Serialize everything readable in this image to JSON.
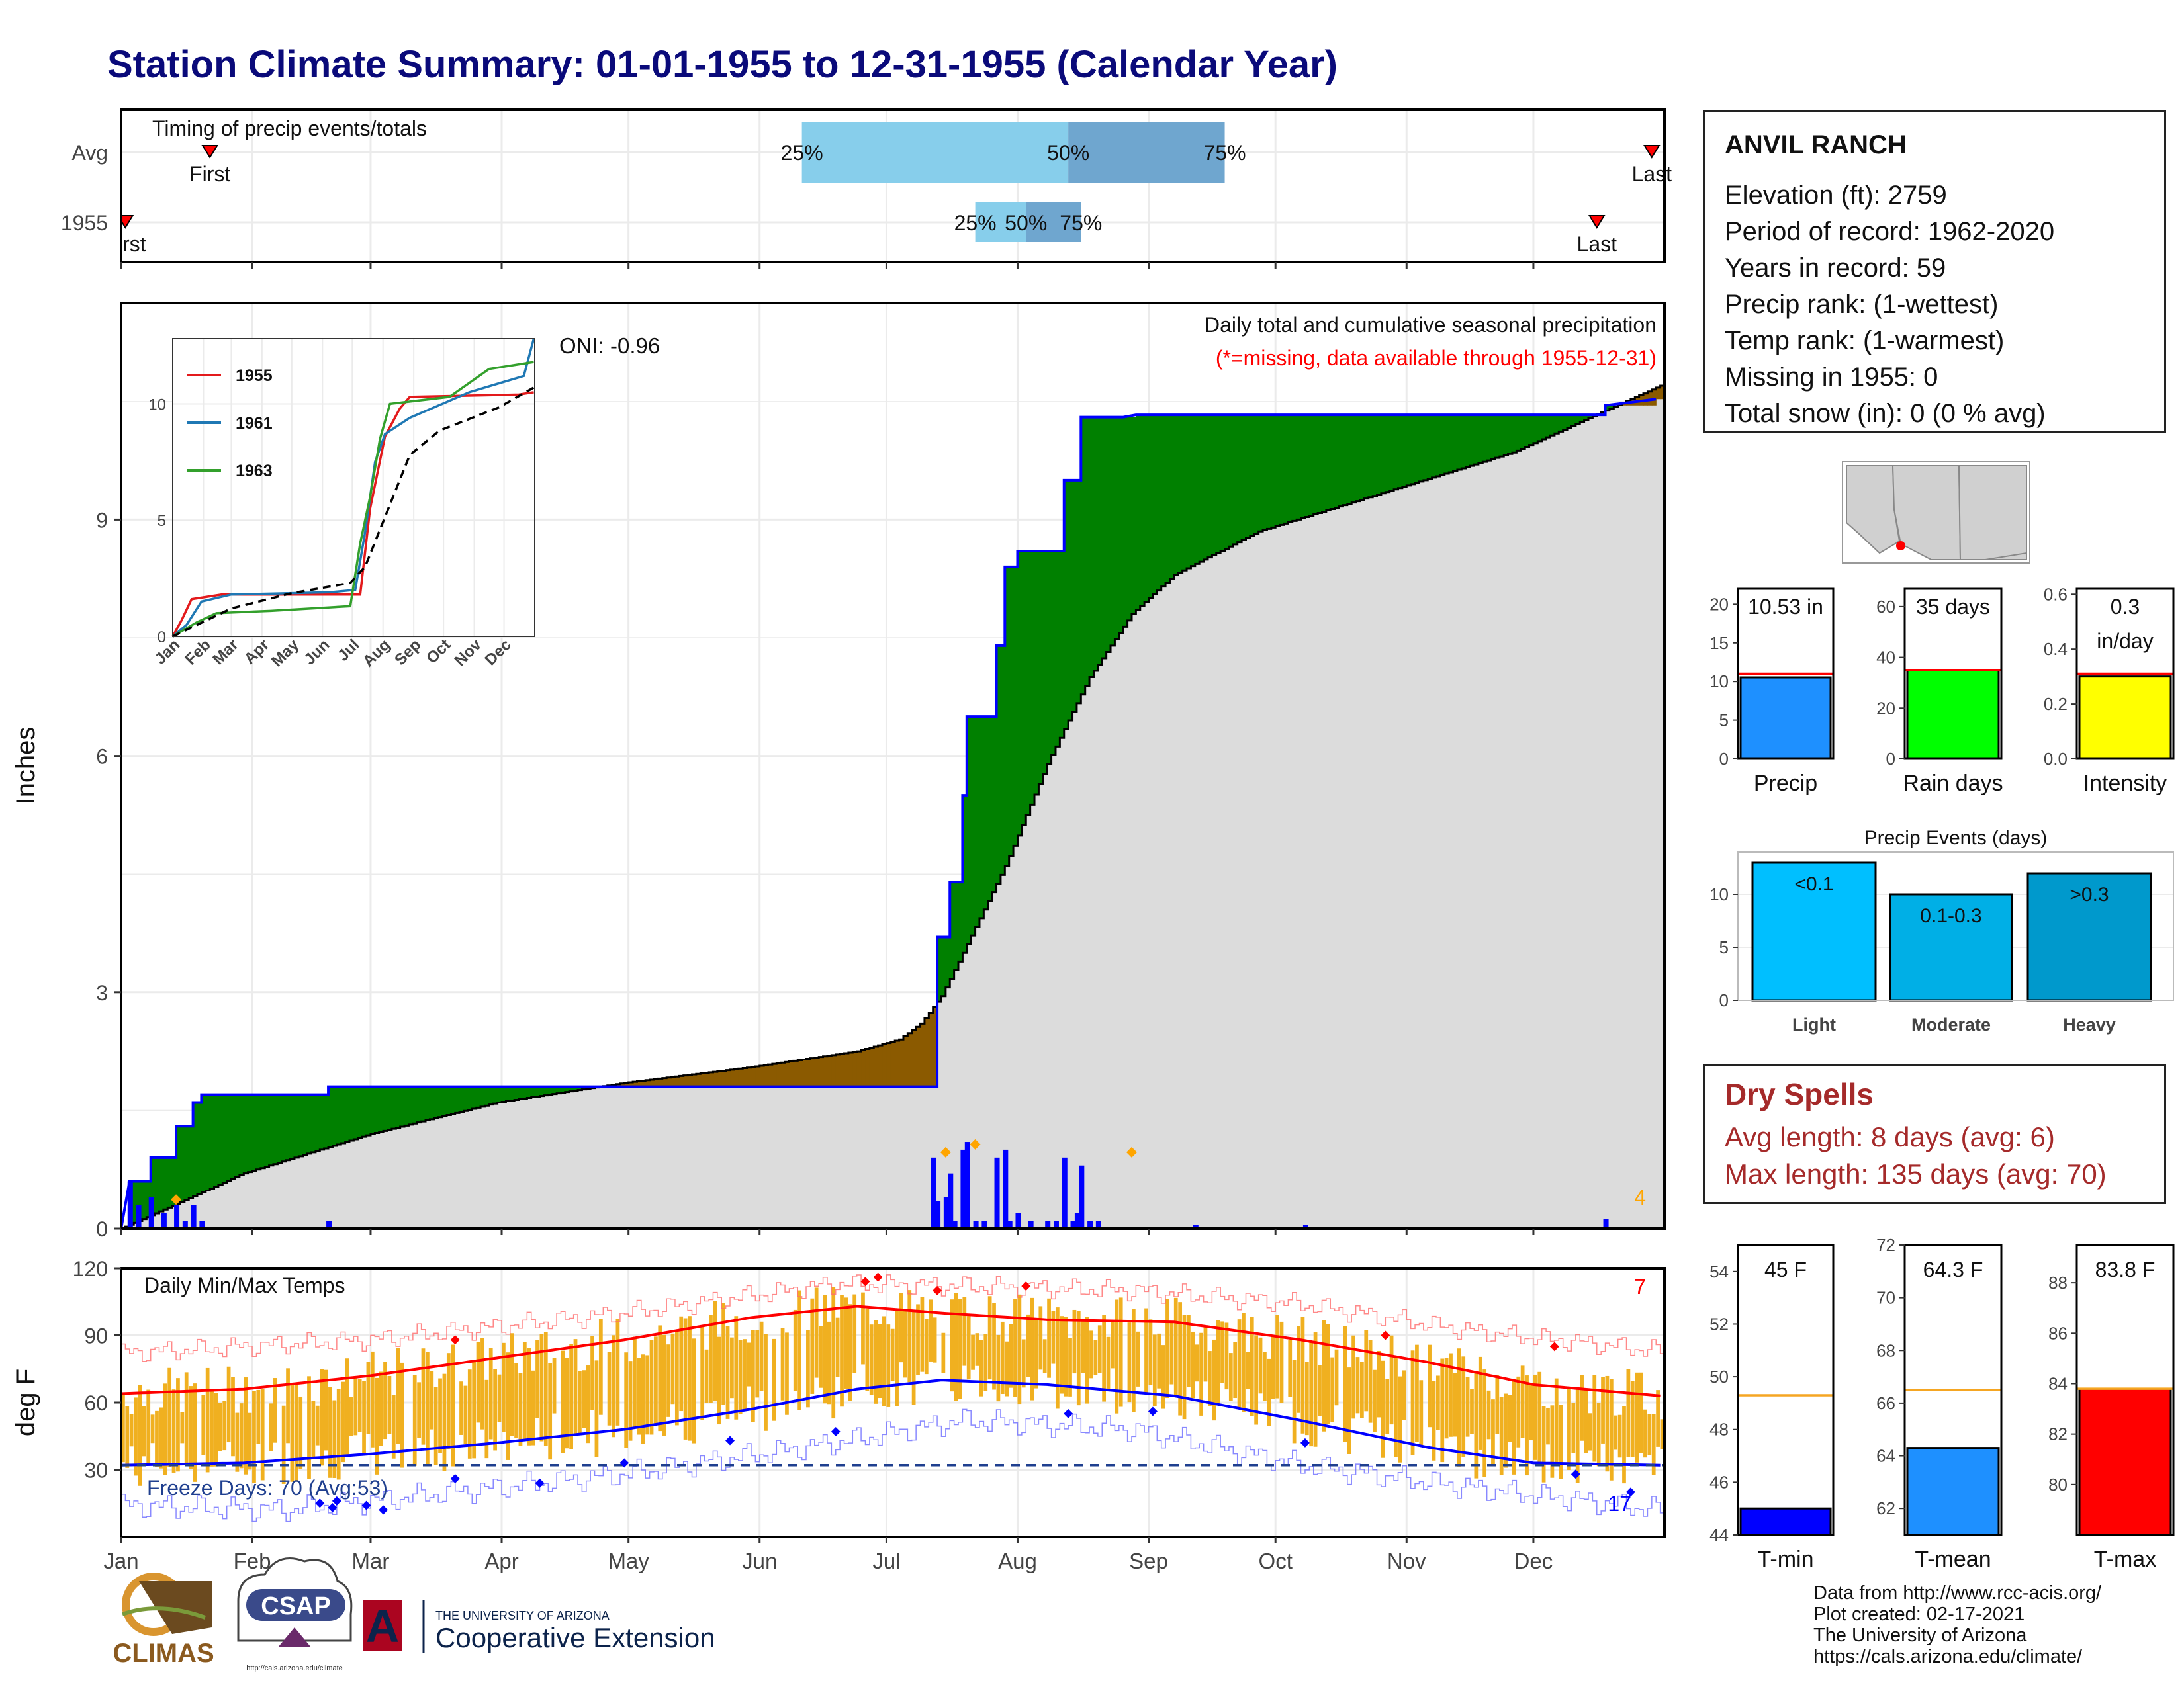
{
  "title": "Station Climate Summary: 01-01-1955 to 12-31-1955 (Calendar Year)",
  "station": {
    "name": "ANVIL RANCH",
    "lines": [
      "Elevation (ft): 2759",
      "Period of record: 1962-2020",
      "Years in record: 59",
      "Precip rank:  (1-wettest)",
      "Temp rank:  (1-warmest)",
      "Missing in 1955: 0",
      "Total snow (in): 0 (0 % avg)"
    ]
  },
  "dry_spells": {
    "title": "Dry Spells",
    "lines": [
      "Avg length: 8 days (avg: 6)",
      "Max length: 135 days (avg: 70)"
    ]
  },
  "credits": [
    "Data from http://www.rcc-acis.org/",
    "Plot created: 02-17-2021",
    "The University of Arizona",
    "https://cals.arizona.edu/climate/"
  ],
  "logos": {
    "climas": "CLIMAS",
    "csap": "CSAP",
    "csap_url": "http://cals.arizona.edu/climate",
    "ua_small": "THE UNIVERSITY OF ARIZONA",
    "ua_big": "Cooperative Extension",
    "ua_letter": "A"
  },
  "colors": {
    "navy": "#0a0a7a",
    "green": "#008000",
    "brown": "#8b5a00",
    "grey": "#dcdcdc",
    "blue": "#0000ff",
    "red": "#ff0000",
    "orange": "#f0b020",
    "lightblue": "#87ceeb",
    "midblue": "#6fa6cf",
    "precipbar": "#1e90ff",
    "raindays": "#00ff00",
    "intensity": "#ffff00",
    "light": "#00bfff",
    "moderate": "#00afe6",
    "heavy": "#0099cc",
    "tmin": "#0000ff",
    "tmean": "#1e90ff",
    "tmax": "#ff0000",
    "avgline": "#f5a623"
  },
  "chart_data": [
    {
      "id": "timing",
      "type": "bar",
      "title": "Timing of precip events/totals",
      "categories": [
        "Avg",
        "1955"
      ],
      "x_unit": "day of year",
      "avg": {
        "q25": 162,
        "q50": 225,
        "q75": 262,
        "first": 22,
        "last": 363,
        "first_label": "First",
        "last_label": "Last"
      },
      "year": {
        "q25": 203,
        "q50": 215,
        "q75": 228,
        "first": 2,
        "last": 350,
        "first_label": "First",
        "last_label": "Last"
      },
      "quantile_labels": [
        "25%",
        "50%",
        "75%"
      ]
    },
    {
      "id": "precip-main",
      "type": "area",
      "title": "Daily total and cumulative seasonal precipitation",
      "subtitle": "(*=missing, data available through 1955-12-31)",
      "oni": "ONI: -0.96",
      "ylabel": "Inches",
      "ylim": [
        0,
        11.75
      ],
      "yticks": [
        "0",
        "3",
        "6",
        "9"
      ],
      "months": [
        "Jan",
        "Feb",
        "Mar",
        "Apr",
        "May",
        "Jun",
        "Jul",
        "Aug",
        "Sep",
        "Oct",
        "Nov",
        "Dec"
      ],
      "extreme_count": "4",
      "cumulative_1955": [
        [
          1,
          0
        ],
        [
          3,
          0.6
        ],
        [
          8,
          0.6
        ],
        [
          8,
          0.9
        ],
        [
          14,
          0.9
        ],
        [
          14,
          1.3
        ],
        [
          18,
          1.3
        ],
        [
          18,
          1.6
        ],
        [
          20,
          1.6
        ],
        [
          20,
          1.7
        ],
        [
          50,
          1.7
        ],
        [
          50,
          1.8
        ],
        [
          194,
          1.8
        ],
        [
          194,
          3.7
        ],
        [
          197,
          3.7
        ],
        [
          197,
          4.4
        ],
        [
          200,
          4.4
        ],
        [
          200,
          5.5
        ],
        [
          201,
          5.5
        ],
        [
          201,
          6.5
        ],
        [
          208,
          6.5
        ],
        [
          208,
          7.4
        ],
        [
          210,
          7.4
        ],
        [
          210,
          8.4
        ],
        [
          213,
          8.4
        ],
        [
          213,
          8.6
        ],
        [
          224,
          8.6
        ],
        [
          224,
          9.5
        ],
        [
          228,
          9.5
        ],
        [
          228,
          10.3
        ],
        [
          236,
          10.3
        ],
        [
          238,
          10.3
        ],
        [
          241,
          10.33
        ],
        [
          352,
          10.33
        ],
        [
          352,
          10.45
        ],
        [
          364,
          10.53
        ]
      ],
      "average": [
        [
          1,
          0
        ],
        [
          30,
          0.7
        ],
        [
          60,
          1.2
        ],
        [
          90,
          1.6
        ],
        [
          120,
          1.85
        ],
        [
          150,
          2.05
        ],
        [
          175,
          2.25
        ],
        [
          185,
          2.4
        ],
        [
          190,
          2.6
        ],
        [
          195,
          2.95
        ],
        [
          200,
          3.5
        ],
        [
          210,
          4.6
        ],
        [
          220,
          5.9
        ],
        [
          230,
          7.0
        ],
        [
          240,
          7.8
        ],
        [
          250,
          8.3
        ],
        [
          270,
          8.85
        ],
        [
          300,
          9.35
        ],
        [
          330,
          9.85
        ],
        [
          365,
          10.7
        ]
      ],
      "daily_1955": [
        [
          3,
          0.6
        ],
        [
          5,
          0.3
        ],
        [
          8,
          0.4
        ],
        [
          11,
          0.2
        ],
        [
          14,
          0.3
        ],
        [
          16,
          0.1
        ],
        [
          18,
          0.3
        ],
        [
          20,
          0.1
        ],
        [
          50,
          0.1
        ],
        [
          193,
          0.9
        ],
        [
          194,
          0.35
        ],
        [
          196,
          0.4
        ],
        [
          197,
          0.7
        ],
        [
          198,
          0.1
        ],
        [
          200,
          1.0
        ],
        [
          201,
          1.1
        ],
        [
          203,
          0.1
        ],
        [
          205,
          0.1
        ],
        [
          208,
          0.9
        ],
        [
          210,
          1.0
        ],
        [
          211,
          0.1
        ],
        [
          213,
          0.2
        ],
        [
          216,
          0.1
        ],
        [
          220,
          0.1
        ],
        [
          222,
          0.1
        ],
        [
          224,
          0.9
        ],
        [
          226,
          0.1
        ],
        [
          227,
          0.2
        ],
        [
          228,
          0.8
        ],
        [
          230,
          0.1
        ],
        [
          232,
          0.1
        ],
        [
          255,
          0.05
        ],
        [
          281,
          0.05
        ],
        [
          352,
          0.12
        ]
      ],
      "extreme_days": [
        [
          14,
          0.3
        ],
        [
          196,
          0.9
        ],
        [
          203,
          1.0
        ],
        [
          240,
          0.9
        ]
      ]
    },
    {
      "id": "inset",
      "type": "line",
      "yticks": [
        "0",
        "5",
        "10"
      ],
      "months": [
        "Jan",
        "Feb",
        "Mar",
        "Apr",
        "May",
        "Jun",
        "Jul",
        "Aug",
        "Sep",
        "Oct",
        "Nov",
        "Dec"
      ],
      "series": [
        {
          "name": "1955",
          "color": "#e31a1c",
          "values": [
            [
              1,
              0
            ],
            [
              10,
              0.7
            ],
            [
              20,
              1.6
            ],
            [
              50,
              1.8
            ],
            [
              190,
              1.8
            ],
            [
              200,
              5.5
            ],
            [
              215,
              8.6
            ],
            [
              230,
              9.8
            ],
            [
              240,
              10.3
            ],
            [
              350,
              10.4
            ],
            [
              365,
              10.5
            ]
          ]
        },
        {
          "name": "1961",
          "color": "#1f78b4",
          "values": [
            [
              1,
              0
            ],
            [
              15,
              0.5
            ],
            [
              30,
              1.5
            ],
            [
              60,
              1.8
            ],
            [
              160,
              1.9
            ],
            [
              185,
              2.0
            ],
            [
              195,
              4.5
            ],
            [
              205,
              7.5
            ],
            [
              215,
              8.7
            ],
            [
              240,
              9.4
            ],
            [
              300,
              10.5
            ],
            [
              355,
              11.2
            ],
            [
              365,
              12.8
            ]
          ]
        },
        {
          "name": "1963",
          "color": "#33a02c",
          "values": [
            [
              1,
              0
            ],
            [
              25,
              0.6
            ],
            [
              45,
              1.0
            ],
            [
              100,
              1.1
            ],
            [
              180,
              1.3
            ],
            [
              190,
              4.0
            ],
            [
              200,
              6.0
            ],
            [
              210,
              8.5
            ],
            [
              220,
              10.0
            ],
            [
              280,
              10.3
            ],
            [
              320,
              11.5
            ],
            [
              365,
              11.8
            ]
          ]
        },
        {
          "name": "avg",
          "color": "#000000",
          "dashed": true,
          "values": [
            [
              1,
              0
            ],
            [
              60,
              1.2
            ],
            [
              120,
              1.85
            ],
            [
              180,
              2.3
            ],
            [
              195,
              3.0
            ],
            [
              210,
              4.6
            ],
            [
              240,
              7.8
            ],
            [
              270,
              8.85
            ],
            [
              330,
              9.85
            ],
            [
              365,
              10.7
            ]
          ]
        }
      ]
    },
    {
      "id": "temps",
      "type": "bar",
      "title": "Daily Min/Max Temps",
      "ylabel": "deg F",
      "ylim": [
        0,
        120
      ],
      "yticks": [
        "30",
        "60",
        "90",
        "120"
      ],
      "months": [
        "Jan",
        "Feb",
        "Mar",
        "Apr",
        "May",
        "Jun",
        "Jul",
        "Aug",
        "Sep",
        "Oct",
        "Nov",
        "Dec"
      ],
      "freeze_text": "Freeze Days: 70 (Avg:53)",
      "freeze_line": 32,
      "hot_count": "7",
      "cold_count": "17",
      "normal_max": [
        [
          1,
          64
        ],
        [
          30,
          66
        ],
        [
          60,
          72
        ],
        [
          90,
          80
        ],
        [
          120,
          88
        ],
        [
          150,
          98
        ],
        [
          175,
          103
        ],
        [
          195,
          100
        ],
        [
          220,
          97
        ],
        [
          250,
          96
        ],
        [
          280,
          88
        ],
        [
          310,
          78
        ],
        [
          335,
          68
        ],
        [
          365,
          63
        ]
      ],
      "normal_min": [
        [
          1,
          32
        ],
        [
          30,
          33
        ],
        [
          60,
          37
        ],
        [
          90,
          42
        ],
        [
          120,
          48
        ],
        [
          150,
          57
        ],
        [
          175,
          66
        ],
        [
          195,
          70
        ],
        [
          220,
          68
        ],
        [
          250,
          63
        ],
        [
          280,
          52
        ],
        [
          310,
          40
        ],
        [
          335,
          33
        ],
        [
          365,
          32
        ]
      ],
      "record_max": [
        [
          1,
          82
        ],
        [
          60,
          88
        ],
        [
          120,
          100
        ],
        [
          170,
          113
        ],
        [
          200,
          112
        ],
        [
          240,
          110
        ],
        [
          280,
          104
        ],
        [
          320,
          92
        ],
        [
          365,
          83
        ]
      ],
      "record_min": [
        [
          1,
          14
        ],
        [
          40,
          12
        ],
        [
          80,
          20
        ],
        [
          120,
          28
        ],
        [
          170,
          42
        ],
        [
          200,
          52
        ],
        [
          240,
          48
        ],
        [
          280,
          32
        ],
        [
          320,
          22
        ],
        [
          365,
          12
        ]
      ],
      "max_range": [
        60,
        115
      ],
      "min_range": [
        10,
        75
      ],
      "hot_days": [
        [
          80,
          88
        ],
        [
          177,
          114
        ],
        [
          180,
          116
        ],
        [
          194,
          110
        ],
        [
          215,
          112
        ],
        [
          300,
          90
        ],
        [
          340,
          85
        ]
      ],
      "cold_days": [
        [
          48,
          15
        ],
        [
          51,
          13
        ],
        [
          52,
          16
        ],
        [
          59,
          14
        ],
        [
          63,
          12
        ],
        [
          80,
          26
        ],
        [
          100,
          24
        ],
        [
          120,
          33
        ],
        [
          145,
          43
        ],
        [
          170,
          47
        ],
        [
          225,
          55
        ],
        [
          245,
          56
        ],
        [
          281,
          42
        ],
        [
          345,
          28
        ],
        [
          358,
          20
        ]
      ]
    },
    {
      "id": "precip-bars",
      "type": "bar",
      "categories": [
        "Precip",
        "Rain days",
        "Intensity"
      ],
      "panels": [
        {
          "label": "Precip",
          "value": 10.53,
          "avg": 11.0,
          "ylim": [
            0,
            22
          ],
          "yticks": [
            "0",
            "5",
            "10",
            "15",
            "20"
          ],
          "text": "10.53 in"
        },
        {
          "label": "Rain days",
          "value": 35,
          "avg": 35,
          "ylim": [
            0,
            67
          ],
          "yticks": [
            "0",
            "20",
            "40",
            "60"
          ],
          "text": "35 days"
        },
        {
          "label": "Intensity",
          "value": 0.3,
          "avg": 0.31,
          "ylim": [
            0,
            0.62
          ],
          "yticks": [
            "0.0",
            "0.2",
            "0.4",
            "0.6"
          ],
          "text": "0.3",
          "text2": "in/day"
        }
      ]
    },
    {
      "id": "precip-events",
      "type": "bar",
      "title": "Precip Events (days)",
      "categories": [
        "Light",
        "Moderate",
        "Heavy"
      ],
      "values": [
        13,
        10,
        12
      ],
      "bar_labels": [
        "<0.1",
        "0.1-0.3",
        ">0.3"
      ],
      "ylim": [
        0,
        14
      ],
      "yticks": [
        "0",
        "5",
        "10"
      ]
    },
    {
      "id": "temp-bars",
      "type": "bar",
      "categories": [
        "T-min",
        "T-mean",
        "T-max"
      ],
      "panels": [
        {
          "label": "T-min",
          "value": 45,
          "avg": 49.3,
          "ylim": [
            44,
            55
          ],
          "yticks": [
            "44",
            "46",
            "48",
            "50",
            "52",
            "54"
          ],
          "text": "45 F"
        },
        {
          "label": "T-mean",
          "value": 64.3,
          "avg": 66.5,
          "ylim": [
            61,
            72
          ],
          "yticks": [
            "62",
            "64",
            "66",
            "68",
            "70",
            "72"
          ],
          "text": "64.3 F"
        },
        {
          "label": "T-max",
          "value": 83.8,
          "avg": 83.8,
          "ylim": [
            78,
            89.5
          ],
          "yticks": [
            "80",
            "82",
            "84",
            "86",
            "88"
          ],
          "text": "83.8 F"
        }
      ]
    }
  ]
}
